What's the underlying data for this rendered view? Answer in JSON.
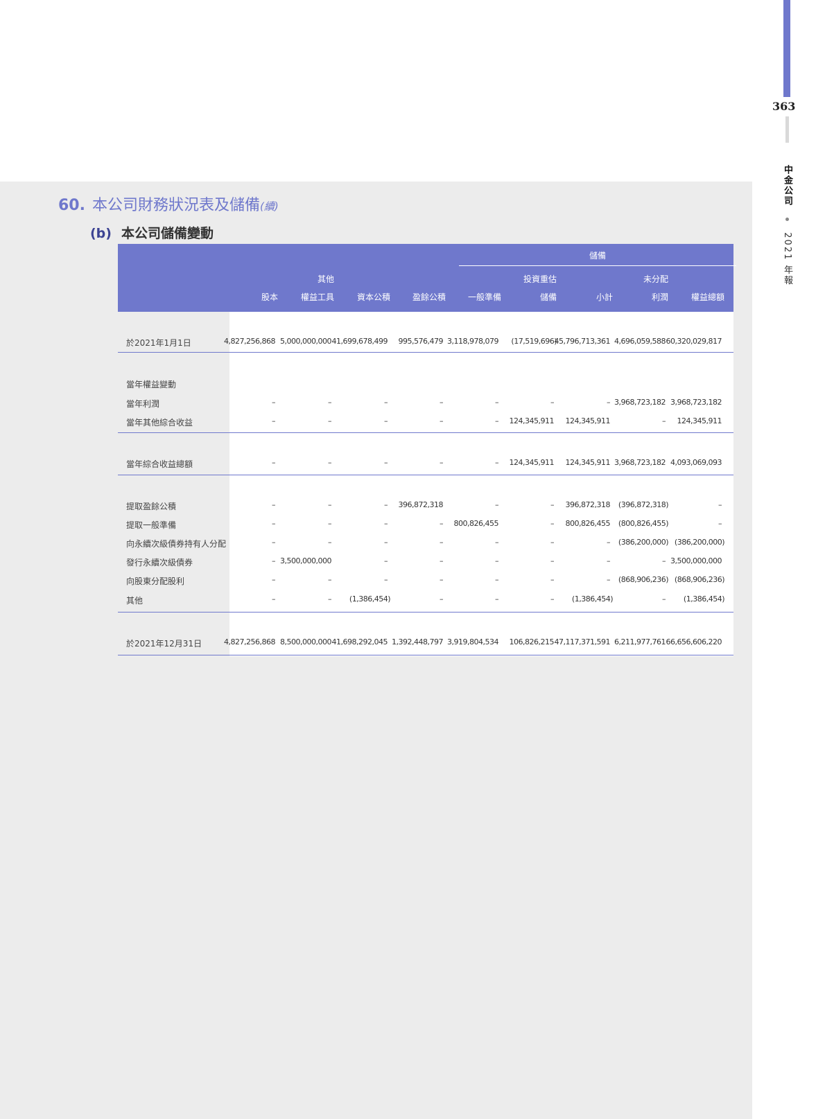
{
  "page_number": "363",
  "side": {
    "company": "中金公司",
    "report": "2021 年報"
  },
  "colors": {
    "accent": "#6f78cc",
    "panel": "#ececec"
  },
  "section": {
    "number": "60.",
    "title": "本公司財務狀況表及儲備",
    "continued": "(續)"
  },
  "subsection": {
    "label": "(b)",
    "title": "本公司儲備變動"
  },
  "table": {
    "group_header": "儲備",
    "columns": [
      {
        "line1": "",
        "line2": "股本"
      },
      {
        "line1": "其他",
        "line2": "權益工具"
      },
      {
        "line1": "",
        "line2": "資本公積"
      },
      {
        "line1": "",
        "line2": "盈餘公積"
      },
      {
        "line1": "",
        "line2": "一般準備"
      },
      {
        "line1": "投資重估",
        "line2": "儲備"
      },
      {
        "line1": "",
        "line2": "小計"
      },
      {
        "line1": "未分配",
        "line2": "利潤"
      },
      {
        "line1": "",
        "line2": "權益總額"
      }
    ],
    "rows": [
      {
        "label": "於2021年1月1日",
        "values": [
          "4,827,256,868",
          "5,000,000,000",
          "41,699,678,499",
          "995,576,479",
          "3,118,978,079",
          "(17,519,696)",
          "45,796,713,361",
          "4,696,059,588",
          "60,320,029,817"
        ]
      },
      {
        "label": "當年權益變動",
        "values": []
      },
      {
        "label": "當年利潤",
        "values": [
          "–",
          "–",
          "–",
          "–",
          "–",
          "–",
          "–",
          "3,968,723,182",
          "3,968,723,182"
        ]
      },
      {
        "label": "當年其他綜合收益",
        "values": [
          "–",
          "–",
          "–",
          "–",
          "–",
          "124,345,911",
          "124,345,911",
          "–",
          "124,345,911"
        ]
      },
      {
        "label": "當年綜合收益總額",
        "values": [
          "–",
          "–",
          "–",
          "–",
          "–",
          "124,345,911",
          "124,345,911",
          "3,968,723,182",
          "4,093,069,093"
        ]
      },
      {
        "label": "提取盈餘公積",
        "values": [
          "–",
          "–",
          "–",
          "396,872,318",
          "–",
          "–",
          "396,872,318",
          "(396,872,318)",
          "–"
        ]
      },
      {
        "label": "提取一般準備",
        "values": [
          "–",
          "–",
          "–",
          "–",
          "800,826,455",
          "–",
          "800,826,455",
          "(800,826,455)",
          "–"
        ]
      },
      {
        "label": "向永續次級債券持有人分配",
        "values": [
          "–",
          "–",
          "–",
          "–",
          "–",
          "–",
          "–",
          "(386,200,000)",
          "(386,200,000)"
        ]
      },
      {
        "label": "發行永續次級債券",
        "values": [
          "–",
          "3,500,000,000",
          "–",
          "–",
          "–",
          "–",
          "–",
          "–",
          "3,500,000,000"
        ]
      },
      {
        "label": "向股東分配股利",
        "values": [
          "–",
          "–",
          "–",
          "–",
          "–",
          "–",
          "–",
          "(868,906,236)",
          "(868,906,236)"
        ]
      },
      {
        "label": "其他",
        "values": [
          "–",
          "–",
          "(1,386,454)",
          "–",
          "–",
          "–",
          "(1,386,454)",
          "–",
          "(1,386,454)"
        ]
      },
      {
        "label": "於2021年12月31日",
        "values": [
          "4,827,256,868",
          "8,500,000,000",
          "41,698,292,045",
          "1,392,448,797",
          "3,919,804,534",
          "106,826,215",
          "47,117,371,591",
          "6,211,977,761",
          "66,656,606,220"
        ]
      }
    ]
  }
}
